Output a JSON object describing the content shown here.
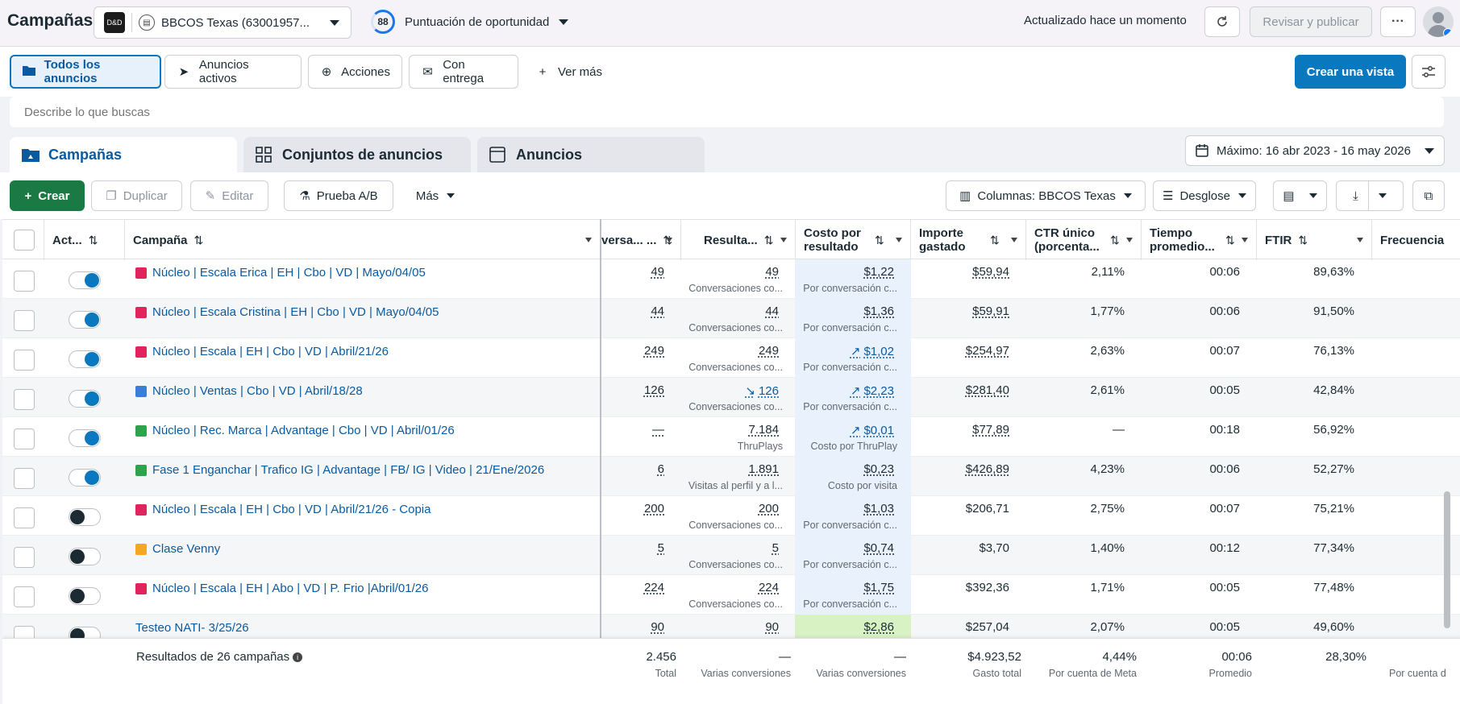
{
  "header": {
    "title": "Campañas",
    "account_name": "BBCOS Texas (63001957...",
    "score_value": "88",
    "score_label": "Puntuación de oportunidad",
    "updated": "Actualizado hace un momento",
    "review_label": "Revisar y publicar",
    "more_label": "···"
  },
  "filters": {
    "items": [
      "Todos los anuncios",
      "Anuncios activos",
      "Acciones",
      "Con entrega",
      "Ver más"
    ],
    "create_view": "Crear una vista"
  },
  "search": {
    "placeholder": "Describe lo que buscas"
  },
  "tabs": {
    "items": [
      "Campañas",
      "Conjuntos de anuncios",
      "Anuncios"
    ],
    "date_range": "Máximo: 16 abr 2023 - 16 may 2026"
  },
  "toolbar": {
    "create": "Crear",
    "duplicate": "Duplicar",
    "edit": "Editar",
    "ab_test": "Prueba A/B",
    "more": "Más",
    "columns": "Columnas: BBCOS Texas",
    "breakdown": "Desglose"
  },
  "table": {
    "headers": {
      "active": "Act...",
      "campaign": "Campaña",
      "conv": "versa... ...",
      "results": "Resulta...",
      "cost": "Costo por resultado",
      "spend": "Importe gastado",
      "ctr": "CTR único (porcenta...",
      "time": "Tiempo promedio...",
      "ftir": "FTIR",
      "freq": "Frecuencia"
    },
    "rows": [
      {
        "name": "Núcleo | Escala Erica | EH | Cbo | VD | Mayo/04/05",
        "color": "#e0245e",
        "on": true,
        "conv": "49",
        "results": "49",
        "results_sub": "Conversaciones co...",
        "cost": "$1,22",
        "cost_sub": "Por conversación c...",
        "spend": "$59,94",
        "ctr": "2,11%",
        "time": "00:06",
        "ftir": "89,63%"
      },
      {
        "name": "Núcleo | Escala Cristina | EH | Cbo | VD | Mayo/04/05",
        "color": "#e0245e",
        "on": true,
        "conv": "44",
        "results": "44",
        "results_sub": "Conversaciones co...",
        "cost": "$1,36",
        "cost_sub": "Por conversación c...",
        "spend": "$59,91",
        "ctr": "1,77%",
        "time": "00:06",
        "ftir": "91,50%"
      },
      {
        "name": "Núcleo | Escala | EH | Cbo | VD | Abril/21/26",
        "color": "#e0245e",
        "on": true,
        "conv": "249",
        "results": "249",
        "results_sub": "Conversaciones co...",
        "cost": "$1,02",
        "cost_trend": "↗",
        "cost_sub": "Por conversación c...",
        "spend": "$254,97",
        "ctr": "2,63%",
        "time": "00:07",
        "ftir": "76,13%"
      },
      {
        "name": "Núcleo | Ventas | Cbo | VD | Abril/18/28",
        "color": "#3b7dd8",
        "on": true,
        "conv": "126",
        "results": "126",
        "results_trend": "↘",
        "results_sub": "Conversaciones co...",
        "cost": "$2,23",
        "cost_trend": "↗",
        "cost_sub": "Por conversación c...",
        "spend": "$281,40",
        "ctr": "2,61%",
        "time": "00:05",
        "ftir": "42,84%"
      },
      {
        "name": "Núcleo | Rec. Marca | Advantage | Cbo | VD | Abril/01/26",
        "color": "#31a24c",
        "on": true,
        "conv": "—",
        "results": "7.184",
        "results_sub": "ThruPlays",
        "cost": "$0,01",
        "cost_trend": "↗",
        "cost_sub": "Costo por ThruPlay",
        "spend": "$77,89",
        "ctr": "—",
        "time": "00:18",
        "ftir": "56,92%"
      },
      {
        "name": "Fase 1 Enganchar | Trafico IG | Advantage | FB/ IG | Video | 21/Ene/2026",
        "color": "#31a24c",
        "on": true,
        "conv": "6",
        "results": "1.891",
        "results_sub": "Visitas al perfil y a l...",
        "cost": "$0,23",
        "cost_sub": "Costo por visita",
        "spend": "$426,89",
        "ctr": "4,23%",
        "time": "00:06",
        "ftir": "52,27%"
      },
      {
        "name": "Núcleo | Escala | EH | Cbo | VD | Abril/21/26 - Copia",
        "color": "#e0245e",
        "on": false,
        "conv": "200",
        "results": "200",
        "results_sub": "Conversaciones co...",
        "cost": "$1,03",
        "cost_sub": "Por conversación c...",
        "spend": "$206,71",
        "ctr": "2,75%",
        "time": "00:07",
        "ftir": "75,21%"
      },
      {
        "name": "Clase Venny",
        "color": "#f5a623",
        "on": false,
        "conv": "5",
        "results": "5",
        "results_sub": "Conversaciones co...",
        "cost": "$0,74",
        "cost_sub": "Por conversación c...",
        "spend": "$3,70",
        "ctr": "1,40%",
        "time": "00:12",
        "ftir": "77,34%"
      },
      {
        "name": "Núcleo | Escala | EH | Abo | VD | P. Frio |Abril/01/26",
        "color": "#e0245e",
        "on": false,
        "conv": "224",
        "results": "224",
        "results_sub": "Conversaciones co...",
        "cost": "$1,75",
        "cost_sub": "Por conversación c...",
        "spend": "$392,36",
        "ctr": "1,71%",
        "time": "00:05",
        "ftir": "77,48%"
      },
      {
        "name": "Testeo NATI- 3/25/26",
        "color": "",
        "on": false,
        "conv": "90",
        "results": "90",
        "results_sub": "",
        "cost": "$2,86",
        "cost_sub": "",
        "spend": "$257,04",
        "ctr": "2,07%",
        "time": "00:05",
        "ftir": "49,60%",
        "green": true
      }
    ],
    "footer": {
      "label": "Resultados de 26 campañas",
      "conv": "2.456",
      "conv_sub": "Total",
      "results": "—",
      "results_sub": "Varias conversiones",
      "cost": "—",
      "cost_sub": "Varias conversiones",
      "spend": "$4.923,52",
      "spend_sub": "Gasto total",
      "ctr": "4,44%",
      "ctr_sub": "Por cuenta de Meta",
      "time": "00:06",
      "time_sub": "Promedio",
      "ftir": "28,30%",
      "freq_sub": "Por cuenta d"
    }
  }
}
